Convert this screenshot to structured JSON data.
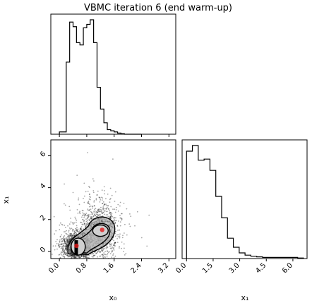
{
  "chart_data": [
    {
      "type": "histogram",
      "panel": "x0 marginal (top-left)",
      "title": "VBMC iteration 6 (end warm-up)",
      "x_ticks": [
        "0.0",
        "0.8",
        "1.6",
        "2.4",
        "3.2"
      ],
      "xlim": [
        -0.25,
        3.4
      ],
      "bin_edges": [
        0.0,
        0.1,
        0.2,
        0.3,
        0.4,
        0.5,
        0.6,
        0.7,
        0.8,
        0.9,
        1.0,
        1.1,
        1.2,
        1.3,
        1.4,
        1.5,
        1.6,
        1.7,
        1.8,
        1.9,
        2.0,
        2.1,
        2.2,
        2.3,
        2.4
      ],
      "counts": [
        0.02,
        0.02,
        0.63,
        0.98,
        0.94,
        0.8,
        0.78,
        0.93,
        0.96,
        1.0,
        0.8,
        0.41,
        0.22,
        0.1,
        0.04,
        0.03,
        0.02,
        0.01,
        0.005,
        0.0,
        0.0,
        0.0,
        0.0,
        0.0
      ]
    },
    {
      "type": "histogram",
      "panel": "x1 marginal (bottom-right)",
      "x_ticks": [
        "0.0",
        "1.5",
        "3.0",
        "4.5",
        "6.0"
      ],
      "xlabel": "x₁",
      "xlim": [
        -0.25,
        6.8
      ],
      "bin_edges": [
        0.0,
        0.33,
        0.66,
        0.99,
        1.32,
        1.65,
        1.98,
        2.31,
        2.64,
        2.97,
        3.3,
        3.63,
        3.96,
        4.29,
        4.62,
        4.95,
        5.28,
        5.61,
        5.94,
        6.27,
        6.6
      ],
      "counts": [
        0.95,
        1.0,
        0.87,
        0.88,
        0.78,
        0.55,
        0.36,
        0.18,
        0.1,
        0.05,
        0.03,
        0.02,
        0.015,
        0.01,
        0.01,
        0.01,
        0.01,
        0.01,
        0.01,
        0.005
      ]
    },
    {
      "type": "scatter",
      "panel": "joint density (bottom-left)",
      "x_ticks": [
        "0.0",
        "0.8",
        "1.6",
        "2.4",
        "3.2"
      ],
      "y_ticks": [
        "0",
        "2",
        "4",
        "6"
      ],
      "xlabel": "x₀",
      "ylabel": "x₁",
      "xlim": [
        -0.25,
        3.4
      ],
      "ylim": [
        -0.45,
        7.0
      ],
      "points_rendered_as": "dense black sample cloud",
      "cloud_lobes": [
        {
          "x": 0.5,
          "y": 0.3,
          "sx": 0.2,
          "sy": 0.4,
          "weight": 0.55
        },
        {
          "x": 1.15,
          "y": 1.3,
          "sx": 0.28,
          "sy": 0.9,
          "weight": 0.45
        }
      ],
      "contour_regions": [
        {
          "level": "outer",
          "center_x": 0.85,
          "center_y": 0.8
        },
        {
          "level": "inner",
          "center_x": 0.55,
          "center_y": 0.3
        },
        {
          "level": "inner",
          "center_x": 1.2,
          "center_y": 1.3
        }
      ],
      "highlight_points": [
        {
          "x": 0.5,
          "y": 0.35,
          "color": "#e41a1c"
        },
        {
          "x": 1.25,
          "y": 1.35,
          "color": "#e41a1c"
        }
      ],
      "grid": false
    }
  ]
}
